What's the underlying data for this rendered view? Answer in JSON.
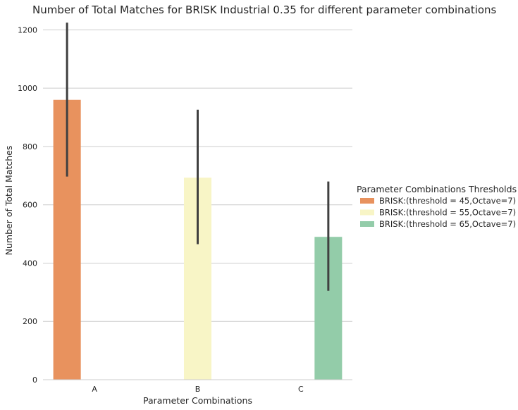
{
  "chart_data": {
    "type": "bar",
    "title": "Number of Total Matches for BRISK Industrial 0.35 for different parameter combinations",
    "xlabel": "Parameter Combinations",
    "ylabel": "Number of Total Matches",
    "categories": [
      "A",
      "B",
      "C"
    ],
    "ylim": [
      0,
      1230
    ],
    "yticks": [
      0,
      200,
      400,
      600,
      800,
      1000,
      1200
    ],
    "grid": true,
    "legend": {
      "title": "Parameter Combinations Thresholds",
      "placement": "right"
    },
    "series": [
      {
        "name": "BRISK:(threshold = 45,Octave=7)",
        "color": "#e8925e",
        "values": [
          960,
          null,
          null
        ],
        "ci_low": [
          697,
          null,
          null
        ],
        "ci_high": [
          1225,
          null,
          null
        ]
      },
      {
        "name": "BRISK:(threshold = 55,Octave=7)",
        "color": "#f8f5c6",
        "values": [
          null,
          693,
          null
        ],
        "ci_low": [
          null,
          465,
          null
        ],
        "ci_high": [
          null,
          926,
          null
        ]
      },
      {
        "name": "BRISK:(threshold = 65,Octave=7)",
        "color": "#93cca9",
        "values": [
          null,
          null,
          490
        ],
        "ci_low": [
          null,
          null,
          305
        ],
        "ci_high": [
          null,
          null,
          680
        ]
      }
    ]
  }
}
